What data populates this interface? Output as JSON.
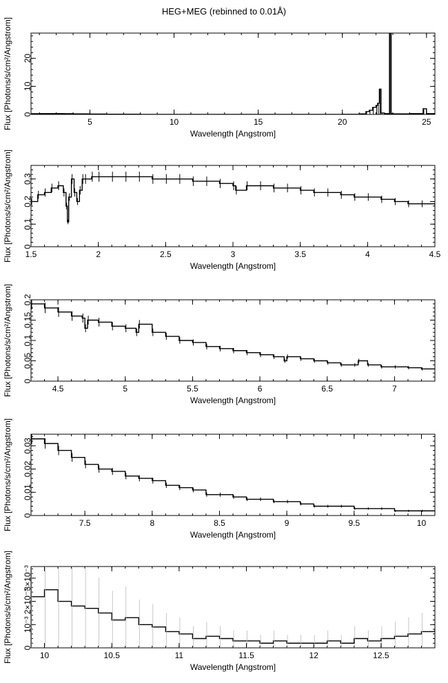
{
  "page_title": "HEG+MEG (rebinned to 0.01Å)",
  "chart_data": [
    {
      "type": "line",
      "xlabel": "Wavelength [Angstrom]",
      "ylabel": "Flux [Photons/s/cm²/Angstrom]",
      "xlim": [
        1.5,
        25.5
      ],
      "ylim": [
        0,
        29
      ],
      "xticks": [
        5,
        10,
        15,
        20,
        25
      ],
      "yticks": [
        0,
        10,
        20
      ],
      "ytick_labels": [
        "0",
        "10",
        "20"
      ],
      "series": [
        {
          "x": [
            1.5,
            2.0,
            2.5,
            3.0,
            3.5,
            4.0,
            5.0,
            6.0,
            8.0,
            10.0,
            12.0,
            15.0,
            18.0,
            20.0,
            21.0,
            21.4,
            21.6,
            21.8,
            22.0,
            22.1,
            22.2,
            22.3,
            22.5,
            22.8,
            22.9,
            23.0,
            23.5,
            24.0,
            24.5,
            24.8,
            25.0,
            25.5
          ],
          "y": [
            0.25,
            0.3,
            0.3,
            0.28,
            0.25,
            0.2,
            0.14,
            0.08,
            0.02,
            0.015,
            0.01,
            0.01,
            0.01,
            0.05,
            0.2,
            1.0,
            1.5,
            2.5,
            3.2,
            4.0,
            9.0,
            0.5,
            0.3,
            29.0,
            0.3,
            0.2,
            0.2,
            0.3,
            0.3,
            2.0,
            0.3,
            0.2
          ]
        }
      ]
    },
    {
      "type": "line",
      "xlabel": "Wavelength [Angstrom]",
      "ylabel": "Flux [Photons/s/cm²/Angstrom]",
      "xlim": [
        1.5,
        4.5
      ],
      "ylim": [
        0,
        0.36
      ],
      "xticks": [
        1.5,
        2,
        2.5,
        3,
        3.5,
        4,
        4.5
      ],
      "yticks": [
        0,
        0.1,
        0.2,
        0.3
      ],
      "ytick_labels": [
        "0",
        "0.1",
        "0.2",
        "0.3"
      ],
      "series": [
        {
          "x": [
            1.5,
            1.55,
            1.6,
            1.65,
            1.7,
            1.74,
            1.76,
            1.77,
            1.78,
            1.8,
            1.82,
            1.84,
            1.86,
            1.88,
            1.9,
            1.95,
            2.0,
            2.1,
            2.2,
            2.3,
            2.4,
            2.5,
            2.6,
            2.7,
            2.8,
            2.9,
            3.0,
            3.02,
            3.1,
            3.2,
            3.3,
            3.4,
            3.5,
            3.6,
            3.7,
            3.8,
            3.9,
            4.0,
            4.1,
            4.2,
            4.3,
            4.4,
            4.5
          ],
          "y": [
            0.2,
            0.23,
            0.24,
            0.26,
            0.27,
            0.24,
            0.18,
            0.11,
            0.22,
            0.3,
            0.24,
            0.2,
            0.25,
            0.3,
            0.3,
            0.31,
            0.31,
            0.31,
            0.31,
            0.31,
            0.3,
            0.3,
            0.3,
            0.29,
            0.29,
            0.28,
            0.27,
            0.25,
            0.27,
            0.27,
            0.26,
            0.26,
            0.25,
            0.24,
            0.24,
            0.23,
            0.22,
            0.22,
            0.21,
            0.2,
            0.19,
            0.19,
            0.18
          ]
        }
      ]
    },
    {
      "type": "line",
      "xlabel": "Wavelength [Angstrom]",
      "ylabel": "Flux [Photons/s/cm²/Angstrom]",
      "xlim": [
        4.3,
        7.3
      ],
      "ylim": [
        0,
        0.2
      ],
      "xticks": [
        4.5,
        5,
        5.5,
        6,
        6.5,
        7
      ],
      "yticks": [
        0,
        0.05,
        0.1,
        0.15,
        0.2
      ],
      "ytick_labels": [
        "0",
        "0.05",
        "0.1",
        "0.15",
        "0.2"
      ],
      "series": [
        {
          "x": [
            4.3,
            4.4,
            4.5,
            4.6,
            4.68,
            4.7,
            4.72,
            4.8,
            4.9,
            5.0,
            5.08,
            5.1,
            5.2,
            5.3,
            5.4,
            5.5,
            5.6,
            5.7,
            5.8,
            5.9,
            6.0,
            6.1,
            6.18,
            6.2,
            6.3,
            6.4,
            6.5,
            6.6,
            6.7,
            6.73,
            6.8,
            6.9,
            7.0,
            7.1,
            7.2,
            7.3
          ],
          "y": [
            0.19,
            0.18,
            0.17,
            0.16,
            0.155,
            0.13,
            0.15,
            0.145,
            0.135,
            0.13,
            0.12,
            0.14,
            0.12,
            0.11,
            0.1,
            0.095,
            0.085,
            0.08,
            0.075,
            0.07,
            0.065,
            0.06,
            0.05,
            0.06,
            0.055,
            0.05,
            0.045,
            0.04,
            0.04,
            0.05,
            0.04,
            0.035,
            0.035,
            0.033,
            0.03,
            0.03
          ]
        }
      ]
    },
    {
      "type": "line",
      "xlabel": "Wavelength [Angstrom]",
      "ylabel": "Flux [Photons/s/cm²/Angstrom]",
      "xlim": [
        7.1,
        10.1
      ],
      "ylim": [
        0,
        0.035
      ],
      "xticks": [
        7.5,
        8,
        8.5,
        9,
        9.5,
        10
      ],
      "yticks": [
        0,
        0.01,
        0.02,
        0.03
      ],
      "ytick_labels": [
        "0",
        "0.01",
        "0.02",
        "0.03"
      ],
      "series": [
        {
          "x": [
            7.1,
            7.2,
            7.3,
            7.4,
            7.5,
            7.6,
            7.7,
            7.8,
            7.9,
            8.0,
            8.1,
            8.2,
            8.3,
            8.4,
            8.5,
            8.6,
            8.7,
            8.8,
            8.9,
            9.0,
            9.1,
            9.2,
            9.3,
            9.4,
            9.5,
            9.6,
            9.7,
            9.8,
            9.9,
            10.0,
            10.1
          ],
          "y": [
            0.033,
            0.031,
            0.028,
            0.025,
            0.022,
            0.02,
            0.019,
            0.017,
            0.016,
            0.015,
            0.013,
            0.012,
            0.011,
            0.009,
            0.009,
            0.008,
            0.007,
            0.007,
            0.006,
            0.006,
            0.005,
            0.004,
            0.004,
            0.004,
            0.003,
            0.003,
            0.003,
            0.002,
            0.002,
            0.002,
            0.002
          ]
        }
      ]
    },
    {
      "type": "line",
      "xlabel": "Wavelength [Angstrom]",
      "ylabel": "Flux [Photons/s/cm²/Angstrom]",
      "xlim": [
        9.9,
        12.9
      ],
      "ylim": [
        0,
        0.0035
      ],
      "xticks": [
        10,
        10.5,
        11,
        11.5,
        12,
        12.5
      ],
      "yticks": [
        0,
        0.001,
        0.002,
        0.003
      ],
      "ytick_labels": [
        "0",
        "10⁻³",
        "2×10⁻³",
        "3×10⁻³"
      ],
      "series": [
        {
          "x": [
            9.9,
            10.0,
            10.1,
            10.2,
            10.3,
            10.4,
            10.5,
            10.6,
            10.7,
            10.8,
            10.9,
            11.0,
            11.1,
            11.2,
            11.3,
            11.4,
            11.5,
            11.6,
            11.7,
            11.8,
            11.9,
            12.0,
            12.1,
            12.2,
            12.3,
            12.4,
            12.5,
            12.6,
            12.7,
            12.8,
            12.9
          ],
          "y": [
            0.0022,
            0.0025,
            0.002,
            0.0018,
            0.0017,
            0.0015,
            0.0012,
            0.0013,
            0.001,
            0.0009,
            0.0007,
            0.0006,
            0.0004,
            0.0005,
            0.0004,
            0.0003,
            0.0003,
            0.0002,
            0.0003,
            0.0002,
            0.0002,
            0.0002,
            0.0003,
            0.0002,
            0.0004,
            0.0003,
            0.0004,
            0.0005,
            0.0006,
            0.0007,
            0.0008
          ]
        }
      ]
    }
  ]
}
